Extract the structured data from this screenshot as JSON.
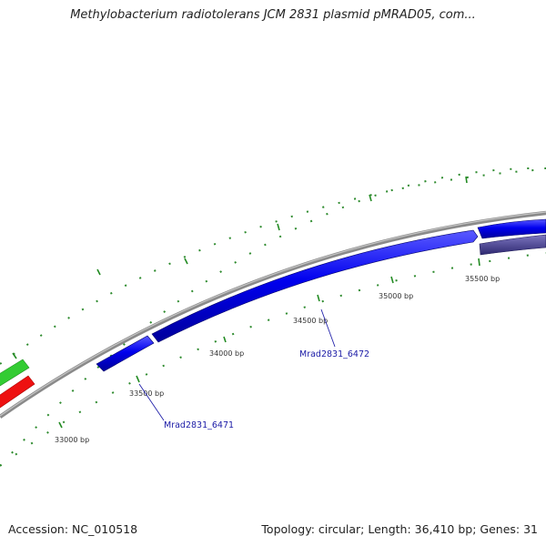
{
  "header": {
    "title": "Methylobacterium radiotolerans JCM 2831 plasmid pMRAD05, com..."
  },
  "map": {
    "tick_labels": [
      "33000 bp",
      "33500 bp",
      "34000 bp",
      "34500 bp",
      "35000 bp",
      "35500 bp"
    ],
    "gene_labels": [
      "Mrad2831_6471",
      "Mrad2831_6472"
    ],
    "colors": {
      "backbone": "#808080",
      "forward_genes": "#0000ee",
      "reverse_gene": "#4b4393",
      "green_feature": "#33cc33",
      "red_feature": "#ee1111",
      "ticks": "#228b22",
      "gene_label": "#1a1aa6"
    }
  },
  "footer": {
    "accession": "Accession: NC_010518",
    "summary": "Topology: circular; Length: 36,410 bp; Genes: 31"
  }
}
